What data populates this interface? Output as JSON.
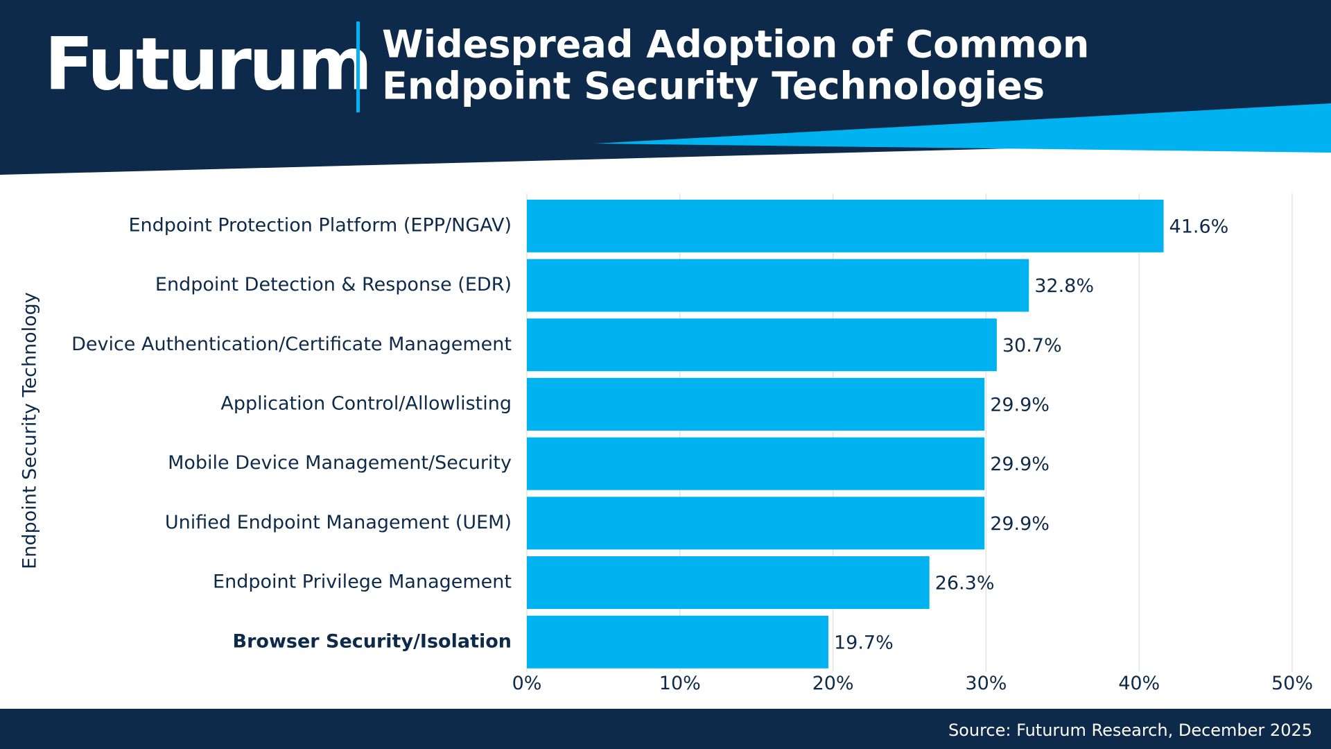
{
  "logo": "Futurum",
  "source": "Source: Futurum Research, December 2025",
  "chart_data": {
    "type": "hbar",
    "title": [
      "Widespread Adoption of Common",
      "Endpoint Security Technologies"
    ],
    "y_label": "Endpoint Security Technology",
    "categories": [
      "Endpoint Protection Platform (EPP/NGAV)",
      "Endpoint Detection & Response (EDR)",
      "Device Authentication/Certificate Management",
      "Application Control/Allowlisting",
      "Mobile Device Management/Security",
      "Unified Endpoint Management (UEM)",
      "Endpoint Privilege Management",
      "Browser Security/Isolation"
    ],
    "values": [
      41.6,
      32.8,
      30.7,
      29.9,
      29.9,
      29.9,
      26.3,
      19.7
    ],
    "value_labels": [
      "41.6%",
      "32.8%",
      "30.7%",
      "29.9%",
      "29.9%",
      "29.9%",
      "26.3%",
      "19.7%"
    ],
    "color": "#00b2f0",
    "xlim": [
      0,
      50
    ],
    "xticks": [
      {
        "value": 0,
        "label": "0%"
      },
      {
        "value": 10,
        "label": "10%"
      },
      {
        "value": 20,
        "label": "20%"
      },
      {
        "value": 30,
        "label": "30%"
      },
      {
        "value": 40,
        "label": "40%"
      },
      {
        "value": 50,
        "label": "50%"
      }
    ],
    "grid": true
  }
}
